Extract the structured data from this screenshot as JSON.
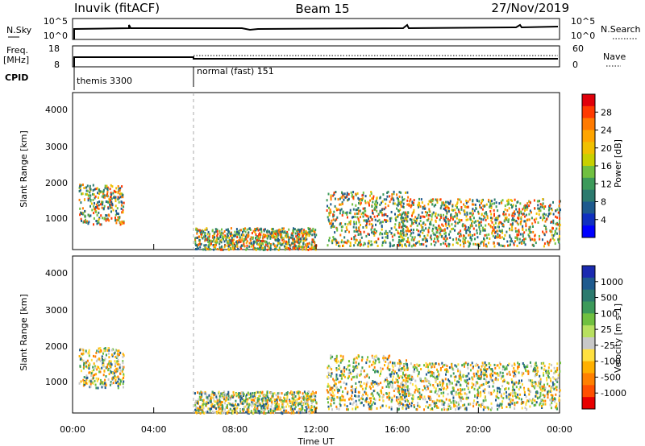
{
  "header": {
    "radar": "Inuvik (fitACF)",
    "beam": "Beam 15",
    "date": "27/Nov/2019"
  },
  "noise_panel": {
    "left_label": "N.Sky",
    "left_ticks": [
      "10^5",
      "10^0"
    ],
    "right_label": "N.Search",
    "right_ticks": [
      "10^5",
      "10^0"
    ]
  },
  "freq_panel": {
    "left_label_1": "Freq.",
    "left_label_2": "[MHz]",
    "left_ticks": [
      "18",
      "8"
    ],
    "right_label": "Nave",
    "right_ticks": [
      "60",
      "0"
    ]
  },
  "cpid_panel": {
    "label": "CPID",
    "segments": [
      {
        "name": "themis 3300"
      },
      {
        "name": "normal (fast) 151"
      }
    ]
  },
  "power_panel": {
    "ylabel": "Slant Range [km]",
    "yticks": [
      "4000",
      "3000",
      "2000",
      "1000"
    ],
    "colorbar": {
      "label": "Power [dB]",
      "ticks": [
        "28",
        "24",
        "20",
        "16",
        "12",
        "8",
        "4"
      ],
      "colors": [
        "#e0000a",
        "#ff3a00",
        "#ff7a00",
        "#ffa500",
        "#f0c000",
        "#c8d000",
        "#70c040",
        "#3c9a5a",
        "#2c7a6e",
        "#1e5a8e",
        "#1030c0",
        "#0000ff"
      ]
    }
  },
  "velocity_panel": {
    "ylabel": "Slant Range [km]",
    "yticks": [
      "4000",
      "3000",
      "2000",
      "1000"
    ],
    "colorbar": {
      "label": "Velocity [m s-1]",
      "ticks": [
        "1000",
        "500",
        "100",
        "25",
        "-25",
        "-100",
        "-500",
        "-1000"
      ],
      "colors": [
        "#1a2ab0",
        "#1e5a8e",
        "#2c7a6e",
        "#3c9a5a",
        "#70c040",
        "#b8e060",
        "#c8c8c8",
        "#ffe040",
        "#ffb000",
        "#ff8000",
        "#ff5000",
        "#e80000"
      ]
    }
  },
  "xaxis": {
    "label": "Time UT",
    "ticks": [
      "00:00",
      "04:00",
      "08:00",
      "12:00",
      "16:00",
      "20:00",
      "00:00"
    ]
  },
  "chart_data": {
    "type": "heatmap",
    "title": "Inuvik (fitACF)",
    "x_range": [
      "00:00",
      "24:00"
    ],
    "y_range_km": [
      180,
      4500
    ],
    "cpid_change_hour": 6.0,
    "power_regions_approx": [
      {
        "t_start_hr": 0.3,
        "t_end_hr": 2.5,
        "range_km": [
          900,
          2000
        ],
        "power_db": 12
      },
      {
        "t_start_hr": 6.0,
        "t_end_hr": 12.0,
        "range_km": [
          200,
          800
        ],
        "power_db": 24
      },
      {
        "t_start_hr": 12.5,
        "t_end_hr": 16.5,
        "range_km": [
          300,
          1800
        ],
        "power_db": 12
      },
      {
        "t_start_hr": 16.0,
        "t_end_hr": 24.0,
        "range_km": [
          300,
          1600
        ],
        "power_db": 16
      }
    ]
  }
}
